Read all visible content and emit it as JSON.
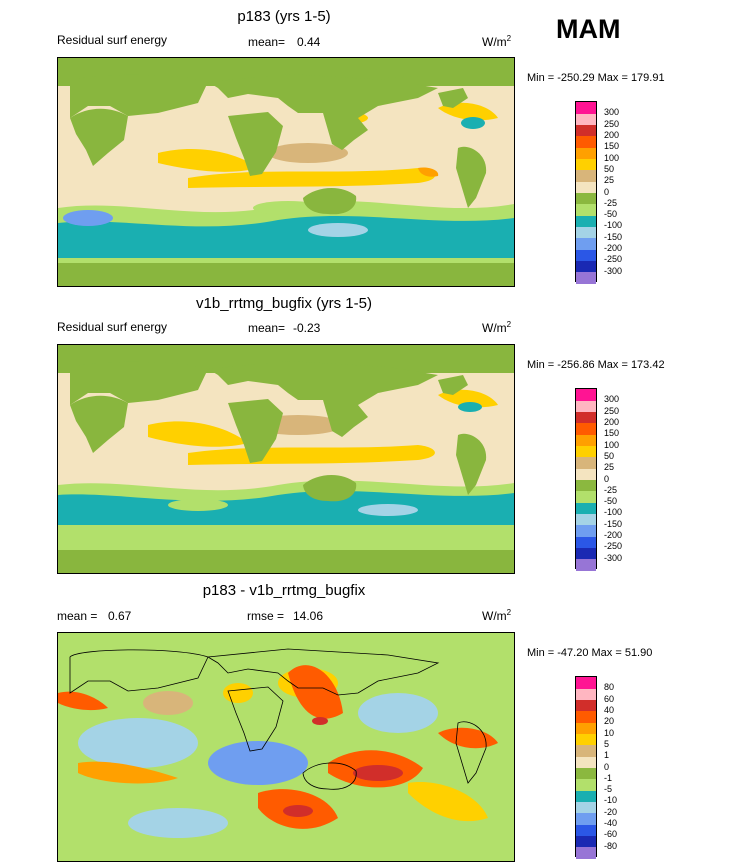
{
  "season": "MAM",
  "colors": {
    "scale": [
      "#9775d6",
      "#1a29b3",
      "#2b57e6",
      "#6f9ef0",
      "#a4d3e6",
      "#1aafb1",
      "#b2e06b",
      "#8bb83f",
      "#f4e4c0",
      "#d8b57a",
      "#ffd000",
      "#ffa000",
      "#ff5b00",
      "#d12e2a",
      "#ffb6c1",
      "#ff1493"
    ],
    "land": "#89b63e"
  },
  "panels": [
    {
      "title": "p183 (yrs 1-5)",
      "left_label": "Residual surf energy",
      "mean_label": "mean=",
      "mean_value": "0.44",
      "unit_base": "W/m",
      "unit_exp": "2",
      "minmax": "Min = -250.29 Max = 179.91",
      "chart_data": {
        "type": "heatmap",
        "title": "p183 (yrs 1-5)",
        "variable": "Residual surf energy",
        "units": "W/m2",
        "mean": 0.44,
        "min": -250.29,
        "max": 179.91,
        "contour_levels": [
          300,
          250,
          200,
          150,
          100,
          50,
          25,
          0,
          -25,
          -50,
          -100,
          -150,
          -200,
          -250,
          -300
        ]
      }
    },
    {
      "title": "v1b_rrtmg_bugfix (yrs 1-5)",
      "left_label": "Residual surf energy",
      "mean_label": "mean=",
      "mean_value": "-0.23",
      "unit_base": "W/m",
      "unit_exp": "2",
      "minmax": "Min = -256.86 Max = 173.42",
      "chart_data": {
        "type": "heatmap",
        "title": "v1b_rrtmg_bugfix (yrs 1-5)",
        "variable": "Residual surf energy",
        "units": "W/m2",
        "mean": -0.23,
        "min": -256.86,
        "max": 173.42,
        "contour_levels": [
          300,
          250,
          200,
          150,
          100,
          50,
          25,
          0,
          -25,
          -50,
          -100,
          -150,
          -200,
          -250,
          -300
        ]
      }
    },
    {
      "title": "p183 - v1b_rrtmg_bugfix",
      "mean_label": "mean =",
      "mean_value": "0.67",
      "rmse_label": "rmse =",
      "rmse_value": "14.06",
      "unit_base": "W/m",
      "unit_exp": "2",
      "minmax": "Min = -47.20 Max =  51.90",
      "chart_data": {
        "type": "heatmap",
        "title": "p183 - v1b_rrtmg_bugfix",
        "units": "W/m2",
        "mean": 0.67,
        "rmse": 14.06,
        "min": -47.2,
        "max": 51.9,
        "contour_levels": [
          80,
          60,
          40,
          20,
          10,
          5,
          1,
          0,
          -1,
          -5,
          -10,
          -20,
          -40,
          -60,
          -80
        ]
      }
    }
  ]
}
